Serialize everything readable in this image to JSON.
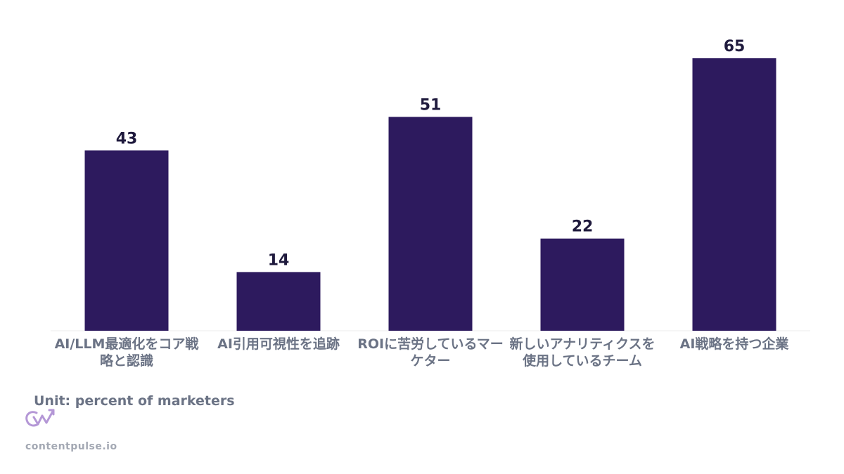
{
  "chart_data": {
    "type": "bar",
    "categories": [
      "AI/LLM最適化をコア戦略と認識",
      "AI引用可視性を追跡",
      "ROIに苦労しているマーケター",
      "新しいアナリティクスを使用しているチーム",
      "AI戦略を持つ企業"
    ],
    "values": [
      43,
      14,
      51,
      22,
      65
    ],
    "ylim": [
      0,
      70
    ],
    "grid": false,
    "bar_color": "#2d1a5e"
  },
  "unit_label": "Unit: percent of marketers",
  "brand": {
    "name": "contentpulse.io",
    "logo_icon": "cw-logo-icon",
    "logo_color": "#b497d6"
  }
}
